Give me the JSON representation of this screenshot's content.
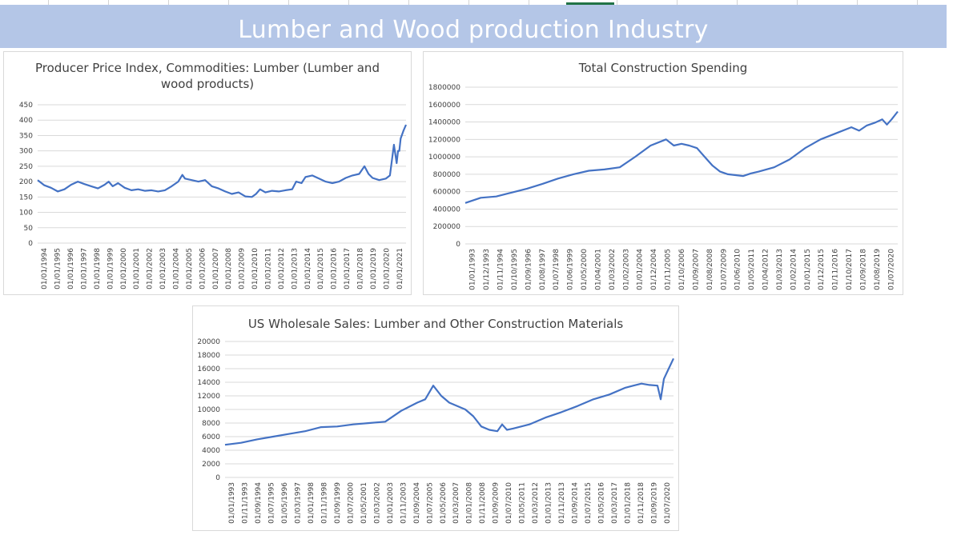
{
  "sheet": {
    "title": "Lumber and Wood production Industry"
  },
  "colors": {
    "banner": "#b4c6e7",
    "line": "#4472c4",
    "grid": "#d9d9d9",
    "axis_text": "#404040"
  },
  "chart_data": [
    {
      "type": "line",
      "title": "Producer Price Index, Commodities: Lumber (Lumber and wood products)",
      "title_lines": [
        "Producer Price Index, Commodities: Lumber (Lumber and",
        "wood products)"
      ],
      "ylim": [
        0,
        450
      ],
      "yticks": [
        "450",
        "400",
        "350",
        "300",
        "250",
        "200",
        "150",
        "100",
        "50",
        "0"
      ],
      "x_range": [
        1994.0,
        2021.5
      ],
      "xticks": [
        "01/01/1994",
        "01/01/1995",
        "01/01/1996",
        "01/01/1997",
        "01/01/1998",
        "01/01/1999",
        "01/01/2000",
        "01/01/2001",
        "01/01/2002",
        "01/01/2003",
        "01/01/2004",
        "01/01/2005",
        "01/01/2006",
        "01/01/2007",
        "01/01/2008",
        "01/01/2009",
        "01/01/2010",
        "01/01/2011",
        "01/01/2012",
        "01/01/2013",
        "01/01/2014",
        "01/01/2015",
        "01/01/2016",
        "01/01/2017",
        "01/01/2018",
        "01/01/2019",
        "01/01/2020",
        "01/01/2021"
      ],
      "grid": true,
      "series": [
        {
          "x": [
            1994.0,
            1994.5,
            1995.0,
            1995.5,
            1996.0,
            1996.5,
            1997.0,
            1997.5,
            1998.0,
            1998.5,
            1999.0,
            1999.3,
            1999.6,
            2000.0,
            2000.5,
            2001.0,
            2001.5,
            2002.0,
            2002.5,
            2003.0,
            2003.5,
            2004.0,
            2004.5,
            2004.8,
            2005.0,
            2005.5,
            2006.0,
            2006.5,
            2007.0,
            2007.5,
            2008.0,
            2008.5,
            2009.0,
            2009.5,
            2010.0,
            2010.3,
            2010.6,
            2011.0,
            2011.5,
            2012.0,
            2012.5,
            2013.0,
            2013.3,
            2013.7,
            2014.0,
            2014.5,
            2015.0,
            2015.5,
            2016.0,
            2016.5,
            2017.0,
            2017.5,
            2018.0,
            2018.4,
            2018.7,
            2019.0,
            2019.5,
            2020.0,
            2020.3,
            2020.6,
            2020.8,
            2020.9,
            2021.0,
            2021.1,
            2021.3,
            2021.5
          ],
          "y": [
            205,
            188,
            180,
            168,
            175,
            190,
            200,
            192,
            185,
            178,
            190,
            200,
            185,
            195,
            180,
            172,
            175,
            170,
            172,
            168,
            172,
            185,
            200,
            222,
            210,
            205,
            200,
            205,
            185,
            178,
            168,
            160,
            165,
            152,
            150,
            160,
            175,
            165,
            170,
            168,
            172,
            175,
            200,
            195,
            215,
            220,
            210,
            200,
            195,
            200,
            212,
            220,
            225,
            250,
            225,
            212,
            205,
            210,
            220,
            320,
            260,
            300,
            300,
            340,
            365,
            385
          ]
        }
      ]
    },
    {
      "type": "line",
      "title": "Total Construction Spending",
      "title_lines": [
        "Total Construction Spending"
      ],
      "ylim": [
        0,
        1800000
      ],
      "yticks": [
        "1800000",
        "1600000",
        "1400000",
        "1200000",
        "1000000",
        "800000",
        "600000",
        "400000",
        "200000",
        "0"
      ],
      "x_range": [
        1993.0,
        2021.0
      ],
      "xticks": [
        "01/01/1993",
        "01/12/1993",
        "01/11/1994",
        "01/10/1995",
        "01/09/1996",
        "01/08/1997",
        "01/07/1998",
        "01/06/1999",
        "01/05/2000",
        "01/04/2001",
        "01/03/2002",
        "01/02/2003",
        "01/01/2004",
        "01/12/2004",
        "01/11/2005",
        "01/10/2006",
        "01/09/2007",
        "01/08/2008",
        "01/07/2009",
        "01/06/2010",
        "01/05/2011",
        "01/04/2012",
        "01/03/2013",
        "01/02/2014",
        "01/01/2015",
        "01/12/2015",
        "01/11/2016",
        "01/10/2017",
        "01/09/2018",
        "01/08/2019",
        "01/07/2020"
      ],
      "grid": true,
      "series": [
        {
          "x": [
            1993.0,
            1994.0,
            1995.0,
            1996.0,
            1997.0,
            1998.0,
            1999.0,
            2000.0,
            2001.0,
            2002.0,
            2003.0,
            2004.0,
            2005.0,
            2006.0,
            2006.5,
            2007.0,
            2007.5,
            2008.0,
            2008.5,
            2009.0,
            2009.5,
            2010.0,
            2010.5,
            2011.0,
            2011.5,
            2012.0,
            2013.0,
            2014.0,
            2015.0,
            2016.0,
            2017.0,
            2018.0,
            2018.5,
            2019.0,
            2019.5,
            2020.0,
            2020.3,
            2020.6,
            2021.0
          ],
          "y": [
            470000,
            530000,
            545000,
            590000,
            635000,
            690000,
            750000,
            800000,
            840000,
            855000,
            880000,
            1000000,
            1130000,
            1200000,
            1130000,
            1150000,
            1130000,
            1100000,
            1000000,
            900000,
            830000,
            800000,
            790000,
            780000,
            810000,
            830000,
            880000,
            970000,
            1100000,
            1200000,
            1270000,
            1340000,
            1300000,
            1360000,
            1390000,
            1430000,
            1370000,
            1430000,
            1520000
          ]
        }
      ]
    },
    {
      "type": "line",
      "title": "US Wholesale Sales: Lumber and Other Construction Materials",
      "title_lines": [
        "US Wholesale Sales: Lumber and Other Construction Materials"
      ],
      "ylim": [
        0,
        20000
      ],
      "yticks": [
        "20000",
        "18000",
        "16000",
        "14000",
        "12000",
        "10000",
        "8000",
        "6000",
        "4000",
        "2000",
        "0"
      ],
      "x_range": [
        1993.0,
        2021.0
      ],
      "xticks": [
        "01/01/1993",
        "01/11/1993",
        "01/09/1994",
        "01/07/1995",
        "01/05/1996",
        "01/03/1997",
        "01/01/1998",
        "01/11/1998",
        "01/09/1999",
        "01/07/2000",
        "01/05/2001",
        "01/03/2002",
        "01/01/2003",
        "01/11/2003",
        "01/09/2004",
        "01/07/2005",
        "01/05/2006",
        "01/03/2007",
        "01/01/2008",
        "01/11/2008",
        "01/09/2009",
        "01/07/2010",
        "01/05/2011",
        "01/03/2012",
        "01/01/2013",
        "01/11/2013",
        "01/09/2014",
        "01/07/2015",
        "01/05/2016",
        "01/03/2017",
        "01/01/2018",
        "01/11/2018",
        "01/09/2019",
        "01/07/2020"
      ],
      "grid": true,
      "series": [
        {
          "x": [
            1993.0,
            1994.0,
            1995.0,
            1996.0,
            1997.0,
            1998.0,
            1999.0,
            2000.0,
            2001.0,
            2002.0,
            2003.0,
            2004.0,
            2005.0,
            2005.5,
            2006.0,
            2006.5,
            2007.0,
            2007.5,
            2008.0,
            2008.5,
            2009.0,
            2009.5,
            2010.0,
            2010.3,
            2010.6,
            2011.0,
            2012.0,
            2013.0,
            2014.0,
            2015.0,
            2016.0,
            2017.0,
            2018.0,
            2018.5,
            2019.0,
            2019.5,
            2020.0,
            2020.2,
            2020.4,
            2020.7,
            2021.0
          ],
          "y": [
            4800,
            5100,
            5600,
            6000,
            6400,
            6800,
            7400,
            7500,
            7800,
            8000,
            8200,
            9800,
            11000,
            11500,
            13500,
            12000,
            11000,
            10500,
            10000,
            9000,
            7500,
            7000,
            6800,
            7800,
            7000,
            7200,
            7800,
            8800,
            9600,
            10500,
            11500,
            12200,
            13200,
            13500,
            13800,
            13600,
            13500,
            11500,
            14500,
            16000,
            17500
          ]
        }
      ]
    }
  ]
}
